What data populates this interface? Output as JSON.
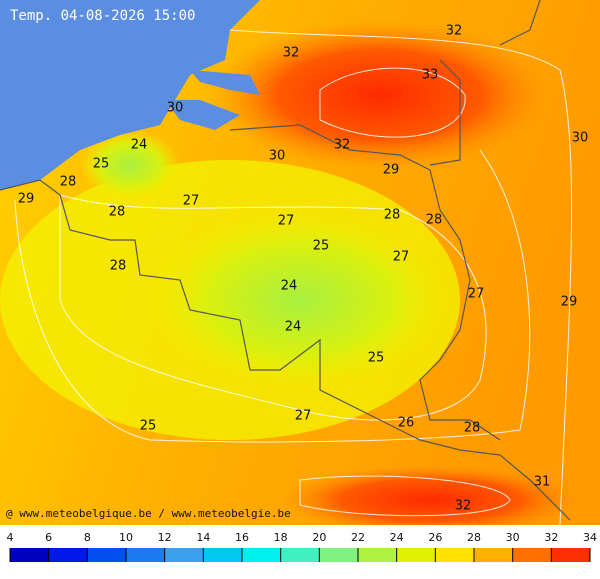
{
  "title": "Temp. 04-08-2026 15:00",
  "credit": "@ www.meteobelgique.be / www.meteobelgie.be",
  "labels": [
    32,
    32,
    33,
    30,
    24,
    25,
    32,
    30,
    30,
    29,
    28,
    29,
    27,
    28,
    27,
    28,
    28,
    25,
    27,
    28,
    24,
    27,
    29,
    24,
    25,
    27,
    25,
    26,
    28,
    31,
    32
  ],
  "colorbar": {
    "ticks": [
      4,
      6,
      8,
      10,
      12,
      14,
      16,
      18,
      20,
      22,
      24,
      26,
      28,
      30,
      32,
      34
    ],
    "colors": [
      "#0000c0",
      "#0018e8",
      "#0050f0",
      "#1a7af0",
      "#3aa0f0",
      "#00c8f0",
      "#00f0f0",
      "#40f0c0",
      "#80f080",
      "#b0f040",
      "#e0f000",
      "#ffe000",
      "#ffb000",
      "#ff7000",
      "#ff3000"
    ]
  }
}
